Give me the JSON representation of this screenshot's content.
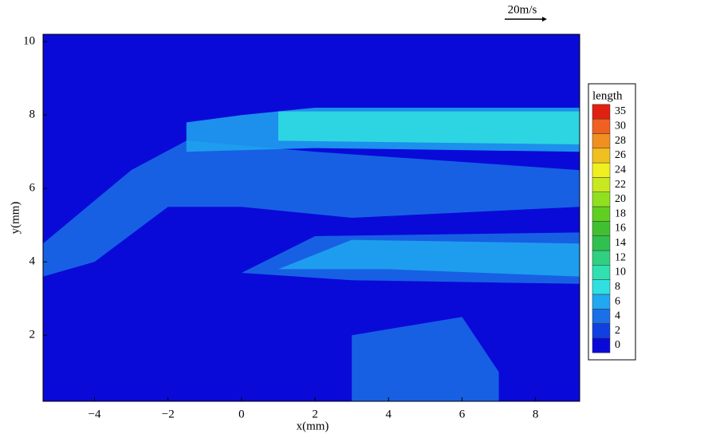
{
  "chart_data": {
    "type": "contour",
    "xlabel": "x(mm)",
    "ylabel": "y(mm)",
    "xlim": [
      -5.4,
      9.2
    ],
    "ylim": [
      0.2,
      10.2
    ],
    "xticks": [
      {
        "value": -4,
        "label": "−4"
      },
      {
        "value": -2,
        "label": "−2"
      },
      0,
      2,
      4,
      6,
      8
    ],
    "yticks": [
      2,
      4,
      6,
      8,
      10
    ],
    "scale_label": "20m/s",
    "colorbar": {
      "title": "length",
      "levels": [
        0,
        2,
        4,
        6,
        8,
        10,
        12,
        14,
        16,
        18,
        20,
        22,
        24,
        26,
        28,
        30,
        35
      ],
      "colors": [
        "#0a0ad8",
        "#1040e0",
        "#1a70e6",
        "#20a8f0",
        "#30e0e0",
        "#30e0b0",
        "#30d080",
        "#30c050",
        "#40c030",
        "#60d020",
        "#90e020",
        "#c8e820",
        "#f0f020",
        "#f0c020",
        "#f09020",
        "#f06020",
        "#e02010"
      ]
    },
    "regions": [
      {
        "x": [
          -5.4,
          -3,
          -1.5,
          2,
          9.2,
          9.2,
          3,
          0,
          -2,
          -4,
          -5.4
        ],
        "y": [
          4.5,
          6.5,
          7.3,
          7.0,
          6.5,
          5.5,
          5.2,
          5.5,
          5.5,
          4.0,
          3.6
        ],
        "value": 4
      },
      {
        "x": [
          -1.5,
          -1.5,
          0,
          2,
          9.2,
          9.2,
          2
        ],
        "y": [
          7.0,
          7.8,
          8.0,
          8.2,
          8.2,
          7.0,
          7.1
        ],
        "value": 6
      },
      {
        "x": [
          1,
          1,
          9.2,
          9.2
        ],
        "y": [
          7.3,
          8.1,
          8.1,
          7.2
        ],
        "value": 8
      },
      {
        "x": [
          0,
          2,
          9.2,
          9.2,
          3
        ],
        "y": [
          3.7,
          4.7,
          4.8,
          3.4,
          3.5
        ],
        "value": 4
      },
      {
        "x": [
          1,
          3,
          9.2,
          9.2,
          4
        ],
        "y": [
          3.8,
          4.6,
          4.5,
          3.6,
          3.8
        ],
        "value": 6
      },
      {
        "x": [
          3,
          3,
          6,
          7,
          7
        ],
        "y": [
          0.2,
          2,
          2.5,
          1.0,
          0.2
        ],
        "value": 4
      }
    ]
  }
}
